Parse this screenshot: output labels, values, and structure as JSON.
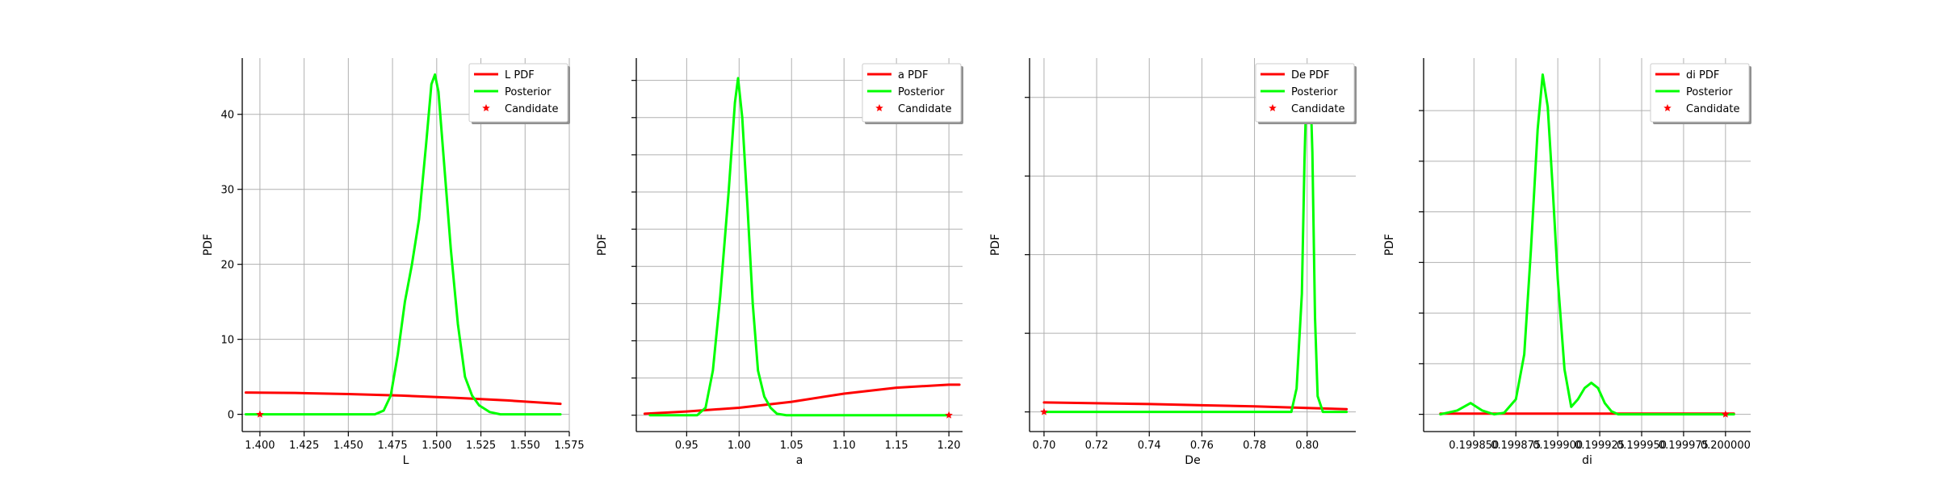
{
  "colors": {
    "prior": "#ff0000",
    "posterior": "#00ff00",
    "candidate": "#ff0000",
    "grid": "#b0b0b0",
    "axis": "#000000"
  },
  "legend_labels": {
    "posterior": "Posterior",
    "candidate": "Candidate"
  },
  "chart_data": [
    {
      "type": "line",
      "xlabel": "L",
      "ylabel": "PDF",
      "xlim": [
        1.39,
        1.575
      ],
      "ylim": [
        -2.3,
        47.5
      ],
      "xticks": [
        1.4,
        1.425,
        1.45,
        1.475,
        1.5,
        1.525,
        1.55,
        1.575
      ],
      "xtick_labels": [
        "1.400",
        "1.425",
        "1.450",
        "1.475",
        "1.500",
        "1.525",
        "1.550",
        "1.575"
      ],
      "yticks": [
        0,
        10,
        20,
        30,
        40
      ],
      "ytick_labels": [
        "0",
        "10",
        "20",
        "30",
        "40"
      ],
      "grid": true,
      "legend_position": "top-right",
      "series": [
        {
          "name": "L PDF",
          "role": "prior",
          "x": [
            1.392,
            1.42,
            1.45,
            1.48,
            1.51,
            1.54,
            1.57
          ],
          "y": [
            2.9,
            2.85,
            2.7,
            2.5,
            2.2,
            1.85,
            1.4
          ]
        },
        {
          "name": "Posterior",
          "role": "posterior",
          "x": [
            1.392,
            1.465,
            1.47,
            1.474,
            1.478,
            1.482,
            1.486,
            1.49,
            1.494,
            1.497,
            1.499,
            1.501,
            1.504,
            1.508,
            1.512,
            1.516,
            1.52,
            1.524,
            1.53,
            1.536,
            1.57
          ],
          "y": [
            0,
            0,
            0.5,
            2.5,
            8,
            15,
            20,
            26,
            36,
            44,
            45.3,
            43,
            34,
            22,
            12,
            5,
            2.5,
            1.2,
            0.3,
            0,
            0
          ]
        }
      ],
      "candidate": {
        "name": "Candidate",
        "x": 1.4,
        "y": 0
      }
    },
    {
      "type": "line",
      "xlabel": "a",
      "ylabel": "PDF",
      "xlim": [
        0.902,
        1.213
      ],
      "ylim": [
        -2.2,
        48
      ],
      "xticks": [
        0.9,
        0.95,
        1.0,
        1.05,
        1.1,
        1.15,
        1.2
      ],
      "xtick_labels": [
        "0.90",
        "0.95",
        "1.00",
        "1.05",
        "1.10",
        "1.15",
        "1.20"
      ],
      "yticks": [
        0,
        5,
        10,
        15,
        20,
        25,
        30,
        35,
        40,
        45
      ],
      "ytick_labels": [],
      "grid": true,
      "legend_position": "top-right",
      "series": [
        {
          "name": "a PDF",
          "role": "prior",
          "x": [
            0.91,
            0.95,
            1.0,
            1.05,
            1.1,
            1.15,
            1.2,
            1.21
          ],
          "y": [
            0.2,
            0.5,
            1.0,
            1.8,
            2.9,
            3.7,
            4.1,
            4.1
          ]
        },
        {
          "name": "Posterior",
          "role": "posterior",
          "x": [
            0.915,
            0.96,
            0.968,
            0.975,
            0.982,
            0.99,
            0.996,
            0.999,
            1.003,
            1.008,
            1.013,
            1.018,
            1.024,
            1.03,
            1.036,
            1.045,
            1.2
          ],
          "y": [
            0,
            0,
            1,
            6,
            16,
            30,
            42,
            45.3,
            40,
            28,
            15,
            6,
            2.5,
            1,
            0.2,
            0,
            0
          ]
        }
      ],
      "candidate": {
        "name": "Candidate",
        "x": 1.2,
        "y": 0
      }
    },
    {
      "type": "line",
      "xlabel": "De",
      "ylabel": "PDF",
      "xlim": [
        0.6945,
        0.8185
      ],
      "ylim": [
        -2.5,
        45
      ],
      "xticks": [
        0.7,
        0.72,
        0.74,
        0.76,
        0.78,
        0.8,
        0.82
      ],
      "xtick_labels": [
        "0.70",
        "0.72",
        "0.74",
        "0.76",
        "0.78",
        "0.80",
        "0.82"
      ],
      "yticks": [
        0,
        10,
        20,
        30,
        40
      ],
      "ytick_labels": [],
      "grid": true,
      "legend_position": "top-right",
      "series": [
        {
          "name": "De PDF",
          "role": "prior",
          "x": [
            0.7,
            0.72,
            0.74,
            0.76,
            0.78,
            0.8,
            0.815
          ],
          "y": [
            1.2,
            1.1,
            1.0,
            0.85,
            0.7,
            0.5,
            0.35
          ]
        },
        {
          "name": "Posterior",
          "role": "posterior",
          "x": [
            0.7,
            0.794,
            0.796,
            0.798,
            0.799,
            0.8,
            0.801,
            0.802,
            0.803,
            0.804,
            0.806,
            0.815
          ],
          "y": [
            0,
            0,
            3,
            15,
            32,
            44,
            44,
            33,
            12,
            2,
            0,
            0
          ]
        }
      ],
      "candidate": {
        "name": "Candidate",
        "x": 0.7,
        "y": 0
      }
    },
    {
      "type": "line",
      "xlabel": "di",
      "ylabel": "PDF",
      "xlim": [
        0.19982,
        0.200015
      ],
      "ylim": [
        -2.3,
        47.5
      ],
      "xticks": [
        0.19985,
        0.199875,
        0.1999,
        0.199925,
        0.19995,
        0.199975,
        0.2
      ],
      "xtick_labels": [
        "0.199850",
        "0.199875",
        "0.199900",
        "0.199925",
        "0.199950",
        "0.199975",
        "0.200000"
      ],
      "yticks": [
        0,
        6.75,
        13.5,
        20.25,
        27,
        33.75,
        40.5
      ],
      "ytick_labels": [],
      "grid": true,
      "legend_position": "top-right",
      "series": [
        {
          "name": "di PDF",
          "role": "prior",
          "x": [
            0.19983,
            0.200005
          ],
          "y": [
            0.1,
            0.1
          ]
        },
        {
          "name": "Posterior",
          "role": "posterior",
          "x": [
            0.19983,
            0.19984,
            0.199848,
            0.199855,
            0.199862,
            0.199868,
            0.199875,
            0.19988,
            0.199884,
            0.199888,
            0.199891,
            0.199894,
            0.199897,
            0.1999,
            0.199904,
            0.199908,
            0.199912,
            0.199916,
            0.19992,
            0.199924,
            0.199928,
            0.199932,
            0.199936,
            0.199945,
            0.200005
          ],
          "y": [
            0,
            0.5,
            1.5,
            0.5,
            0,
            0.2,
            2,
            8,
            22,
            38,
            45.3,
            41,
            30,
            18,
            6,
            1,
            2,
            3.5,
            4.2,
            3.5,
            1.5,
            0.4,
            0,
            0,
            0
          ]
        }
      ],
      "candidate": {
        "name": "Candidate",
        "x": 0.2,
        "y": 0
      }
    }
  ]
}
